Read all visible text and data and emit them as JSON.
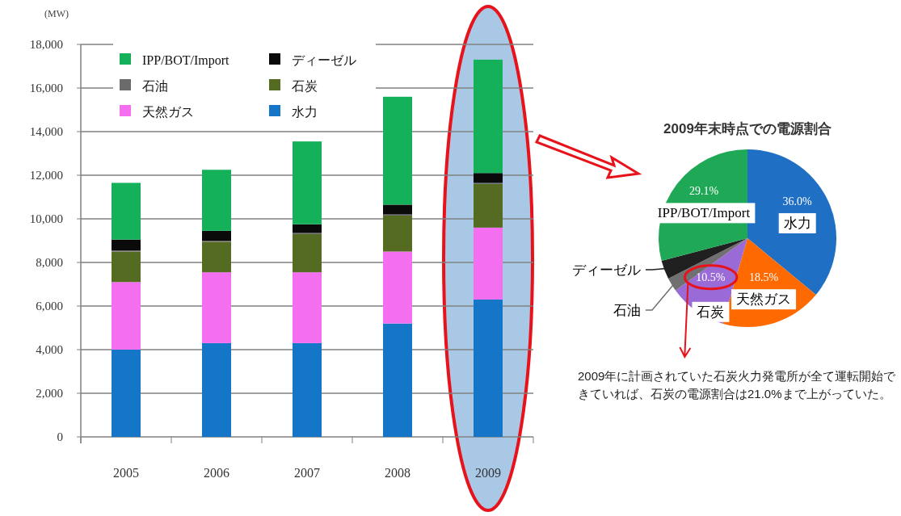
{
  "chart_data": [
    {
      "type": "bar",
      "stacked": true,
      "ylabel": "(MW)",
      "categories": [
        "2005",
        "2006",
        "2007",
        "2008",
        "2009"
      ],
      "ylim": [
        0,
        18000
      ],
      "yticks": [
        0,
        {
          "value": 2000,
          "label": "2,000"
        },
        {
          "value": 4000,
          "label": "4,000"
        },
        {
          "value": 6000,
          "label": "6,000"
        },
        {
          "value": 8000,
          "label": "8,000"
        },
        {
          "value": 10000,
          "label": "10,000"
        },
        {
          "value": 12000,
          "label": "12,000"
        },
        {
          "value": 14000,
          "label": "14,000"
        },
        {
          "value": 16000,
          "label": "16,000"
        },
        {
          "value": 18000,
          "label": "18,000"
        }
      ],
      "grid": "y",
      "legend": "top left",
      "series": [
        {
          "name": "水力",
          "color": "#1576c8",
          "values": [
            4000,
            4300,
            4300,
            5200,
            6300
          ]
        },
        {
          "name": "天然ガス",
          "color": "#f46ef0",
          "values": [
            3100,
            3250,
            3250,
            3300,
            3300
          ]
        },
        {
          "name": "石炭",
          "color": "#556b22",
          "values": [
            1400,
            1400,
            1750,
            1650,
            2000
          ]
        },
        {
          "name": "石油",
          "color": "#6b6b6b",
          "values": [
            50,
            50,
            50,
            50,
            50
          ]
        },
        {
          "name": "ディーゼル",
          "color": "#0a0a0a",
          "values": [
            500,
            450,
            400,
            450,
            450
          ]
        },
        {
          "name": "IPP/BOT/Import",
          "color": "#14b05a",
          "values": [
            2600,
            2800,
            3800,
            4950,
            5200
          ]
        }
      ]
    },
    {
      "type": "pie",
      "title": "2009年末時点での電源割合",
      "categories": [
        "水力",
        "天然ガス",
        "石炭",
        "石油",
        "ディーゼル",
        "IPP/BOT/Import"
      ],
      "values": [
        36.0,
        18.5,
        10.5,
        2.5,
        3.4,
        29.1
      ],
      "colors": [
        "#1f6fc4",
        "#ff6a00",
        "#9a6ad6",
        "#707070",
        "#202020",
        "#1fa855"
      ],
      "value_labels": [
        "36.0%",
        "18.5%",
        "10.5%",
        null,
        null,
        "29.1%"
      ],
      "annotations": [
        "2009年に計画されていた石炭火力発電所が全て運転開始できていれば、石炭の電源割合は21.0%まで上がっていた。"
      ]
    }
  ]
}
